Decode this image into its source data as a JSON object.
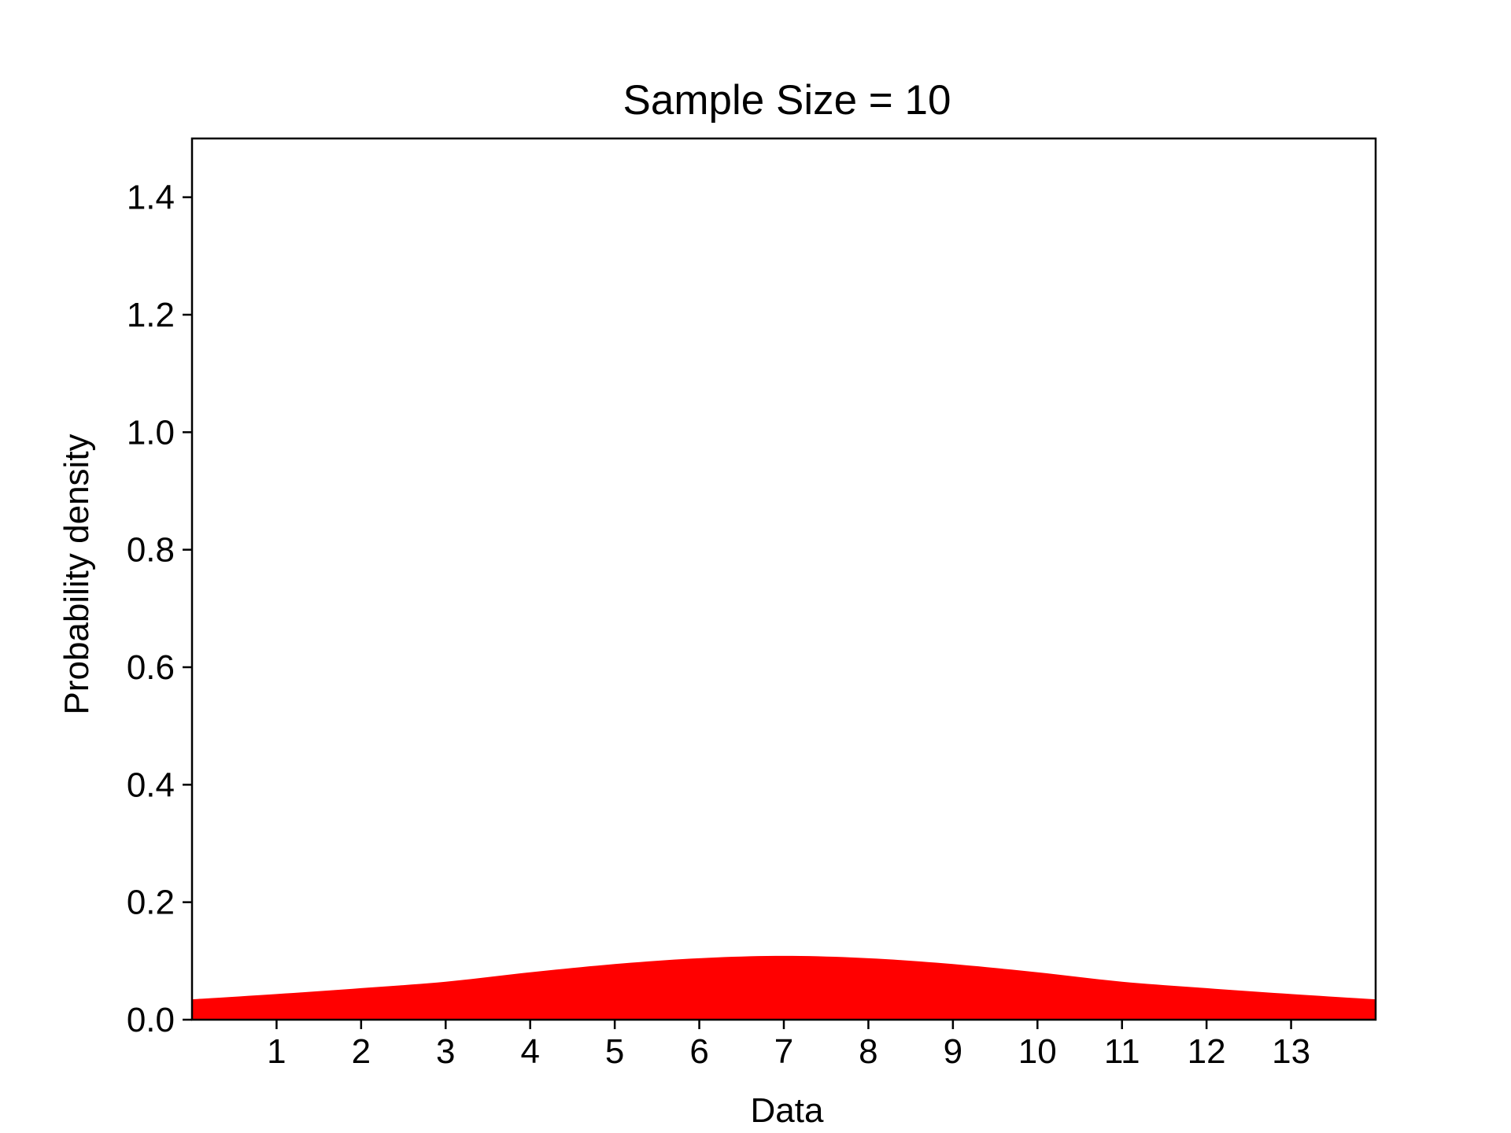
{
  "chart_data": {
    "type": "area",
    "title": "Sample Size = 10",
    "xlabel": "Data",
    "ylabel": "Probability density",
    "xlim": [
      0,
      14
    ],
    "ylim": [
      0,
      1.5
    ],
    "x_ticks": [
      "1",
      "2",
      "3",
      "4",
      "5",
      "6",
      "7",
      "8",
      "9",
      "10",
      "11",
      "12",
      "13"
    ],
    "y_ticks": [
      "0.0",
      "0.2",
      "0.4",
      "0.6",
      "0.8",
      "1.0",
      "1.2",
      "1.4"
    ],
    "grid": false,
    "legend": "none",
    "series": [
      {
        "color": "#ff0000",
        "x": [
          0,
          1,
          2,
          3,
          4,
          5,
          6,
          7,
          8,
          9,
          10,
          11,
          12,
          13,
          14
        ],
        "y": [
          0.034,
          0.043,
          0.053,
          0.064,
          0.08,
          0.094,
          0.104,
          0.108,
          0.104,
          0.094,
          0.08,
          0.064,
          0.053,
          0.043,
          0.034
        ]
      }
    ]
  }
}
